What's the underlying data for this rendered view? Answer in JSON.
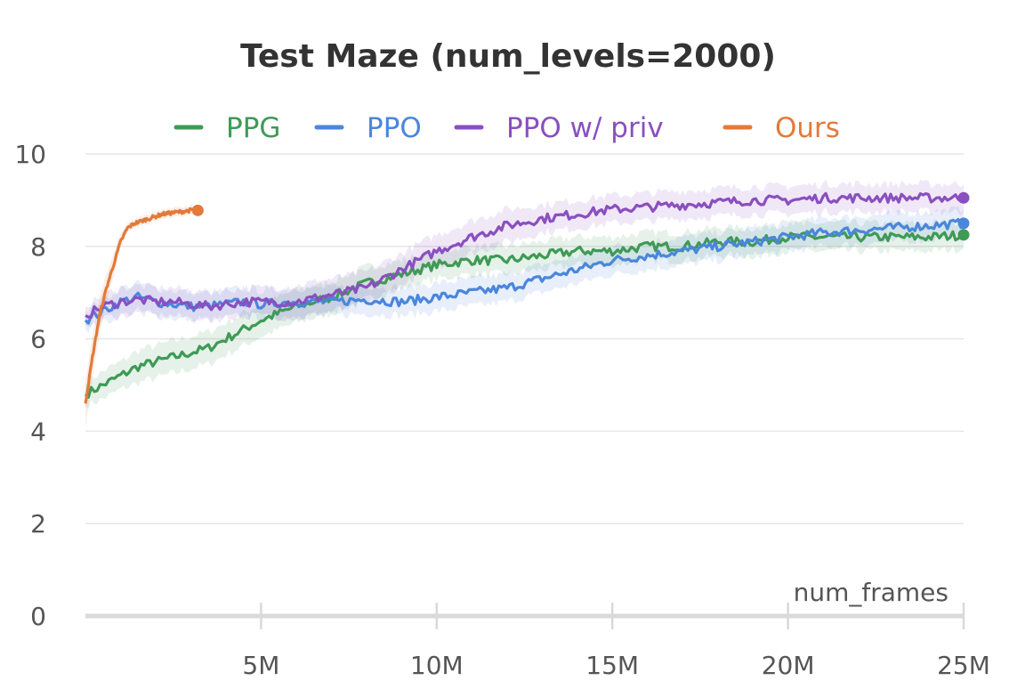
{
  "chart_data": {
    "type": "line",
    "title": "Test Maze (num_levels=2000)",
    "xlabel": "num_frames",
    "ylabel": "",
    "xlim": [
      0,
      25000000
    ],
    "ylim": [
      0,
      10
    ],
    "x_ticks": [
      {
        "value": 5000000,
        "label": "5M"
      },
      {
        "value": 10000000,
        "label": "10M"
      },
      {
        "value": 15000000,
        "label": "15M"
      },
      {
        "value": 20000000,
        "label": "20M"
      },
      {
        "value": 25000000,
        "label": "25M"
      }
    ],
    "y_ticks": [
      {
        "value": 0,
        "label": "0"
      },
      {
        "value": 2,
        "label": "2"
      },
      {
        "value": 4,
        "label": "4"
      },
      {
        "value": 6,
        "label": "6"
      },
      {
        "value": 8,
        "label": "8"
      },
      {
        "value": 10,
        "label": "10"
      }
    ],
    "grid": true,
    "legend_position": "top",
    "series": [
      {
        "name": "PPG",
        "color": "#3f9a55",
        "x": [
          0,
          500000,
          1000000,
          1500000,
          2000000,
          2500000,
          3000000,
          3500000,
          4000000,
          4500000,
          5000000,
          6000000,
          7000000,
          8000000,
          9000000,
          10000000,
          11000000,
          12000000,
          13000000,
          14000000,
          15000000,
          16000000,
          17000000,
          18000000,
          19000000,
          20000000,
          21000000,
          22000000,
          23000000,
          24000000,
          25000000
        ],
        "values": [
          4.8,
          5.0,
          5.2,
          5.4,
          5.5,
          5.6,
          5.7,
          5.8,
          6.0,
          6.2,
          6.4,
          6.7,
          6.9,
          7.2,
          7.4,
          7.6,
          7.7,
          7.7,
          7.8,
          7.9,
          7.9,
          8.0,
          8.0,
          8.1,
          8.1,
          8.2,
          8.2,
          8.2,
          8.2,
          8.2,
          8.25
        ],
        "band": [
          0.25,
          0.3,
          0.3,
          0.35,
          0.35,
          0.35,
          0.35,
          0.35,
          0.35,
          0.35,
          0.35,
          0.35,
          0.35,
          0.35,
          0.3,
          0.3,
          0.3,
          0.3,
          0.3,
          0.3,
          0.3,
          0.3,
          0.3,
          0.3,
          0.3,
          0.3,
          0.3,
          0.3,
          0.3,
          0.3,
          0.3
        ]
      },
      {
        "name": "PPO",
        "color": "#4a86dc",
        "x": [
          0,
          500000,
          1000000,
          1500000,
          2000000,
          2500000,
          3000000,
          3500000,
          4000000,
          4500000,
          5000000,
          6000000,
          7000000,
          8000000,
          9000000,
          10000000,
          11000000,
          12000000,
          13000000,
          14000000,
          15000000,
          16000000,
          17000000,
          18000000,
          19000000,
          20000000,
          21000000,
          22000000,
          23000000,
          24000000,
          25000000
        ],
        "values": [
          6.4,
          6.6,
          6.8,
          6.9,
          6.8,
          6.75,
          6.7,
          6.7,
          6.75,
          6.8,
          6.75,
          6.8,
          6.8,
          6.85,
          6.8,
          6.9,
          7.0,
          7.1,
          7.3,
          7.5,
          7.7,
          7.8,
          7.9,
          8.0,
          8.1,
          8.2,
          8.3,
          8.35,
          8.4,
          8.45,
          8.5
        ],
        "band": [
          0.2,
          0.25,
          0.3,
          0.3,
          0.3,
          0.3,
          0.3,
          0.3,
          0.3,
          0.3,
          0.3,
          0.3,
          0.3,
          0.3,
          0.3,
          0.3,
          0.3,
          0.3,
          0.3,
          0.3,
          0.3,
          0.3,
          0.3,
          0.3,
          0.3,
          0.3,
          0.3,
          0.3,
          0.3,
          0.3,
          0.3
        ]
      },
      {
        "name": "PPO w/ priv",
        "color": "#8a4fc0",
        "x": [
          0,
          500000,
          1000000,
          1500000,
          2000000,
          2500000,
          3000000,
          3500000,
          4000000,
          4500000,
          5000000,
          6000000,
          7000000,
          8000000,
          9000000,
          10000000,
          11000000,
          12000000,
          13000000,
          14000000,
          15000000,
          16000000,
          17000000,
          18000000,
          19000000,
          20000000,
          21000000,
          22000000,
          23000000,
          24000000,
          25000000
        ],
        "values": [
          6.5,
          6.7,
          6.8,
          6.85,
          6.8,
          6.8,
          6.75,
          6.7,
          6.75,
          6.8,
          6.8,
          6.8,
          6.95,
          7.1,
          7.5,
          7.9,
          8.2,
          8.45,
          8.6,
          8.7,
          8.8,
          8.85,
          8.9,
          8.95,
          9.0,
          9.0,
          9.05,
          9.05,
          9.05,
          9.05,
          9.05
        ],
        "band": [
          0.2,
          0.25,
          0.3,
          0.3,
          0.3,
          0.3,
          0.3,
          0.3,
          0.3,
          0.3,
          0.3,
          0.35,
          0.35,
          0.35,
          0.35,
          0.35,
          0.35,
          0.35,
          0.3,
          0.3,
          0.3,
          0.3,
          0.3,
          0.3,
          0.3,
          0.3,
          0.3,
          0.3,
          0.3,
          0.3,
          0.3
        ]
      },
      {
        "name": "Ours",
        "color": "#e37a3a",
        "x": [
          0,
          200000,
          400000,
          600000,
          800000,
          1000000,
          1200000,
          1400000,
          1600000,
          1800000,
          2000000,
          2200000,
          2400000,
          2600000,
          2800000,
          3000000,
          3200000
        ],
        "values": [
          4.6,
          5.6,
          6.5,
          7.1,
          7.6,
          8.1,
          8.4,
          8.5,
          8.55,
          8.6,
          8.65,
          8.7,
          8.72,
          8.74,
          8.76,
          8.78,
          8.78
        ],
        "band": [
          0.5,
          0.45,
          0.4,
          0.3,
          0.25,
          0.15,
          0.1,
          0.1,
          0.1,
          0.1,
          0.1,
          0.1,
          0.1,
          0.1,
          0.1,
          0.1,
          0.1
        ]
      }
    ]
  }
}
